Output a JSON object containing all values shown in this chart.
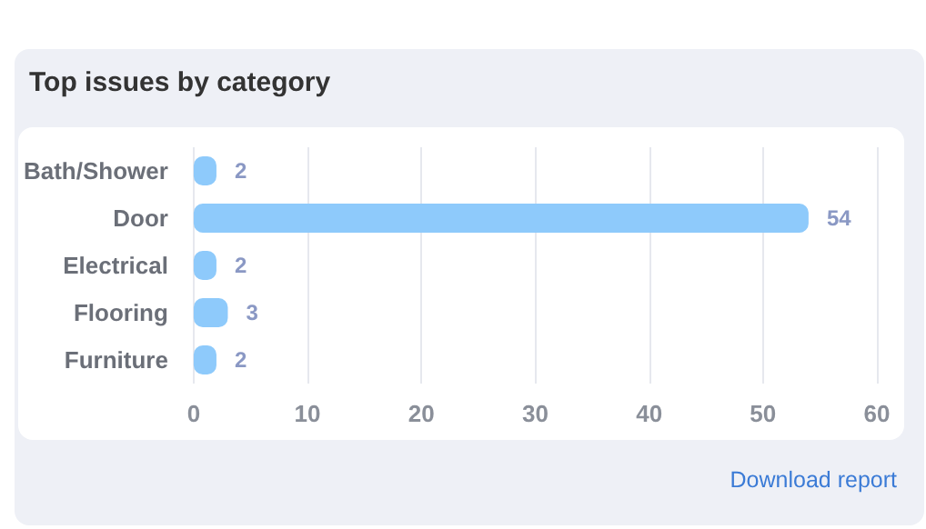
{
  "chart_data": {
    "type": "bar",
    "title": "Top issues by category",
    "orientation": "horizontal",
    "categories": [
      "Bath/Shower",
      "Door",
      "Electrical",
      "Flooring",
      "Furniture"
    ],
    "values": [
      2,
      54,
      2,
      3,
      2
    ],
    "color": "#8ecafb",
    "xlim": [
      0,
      60
    ],
    "xticks": [
      0,
      10,
      20,
      30,
      40,
      50,
      60
    ],
    "grid": "x",
    "data_labels": true,
    "annotations": [
      "Download report"
    ]
  }
}
